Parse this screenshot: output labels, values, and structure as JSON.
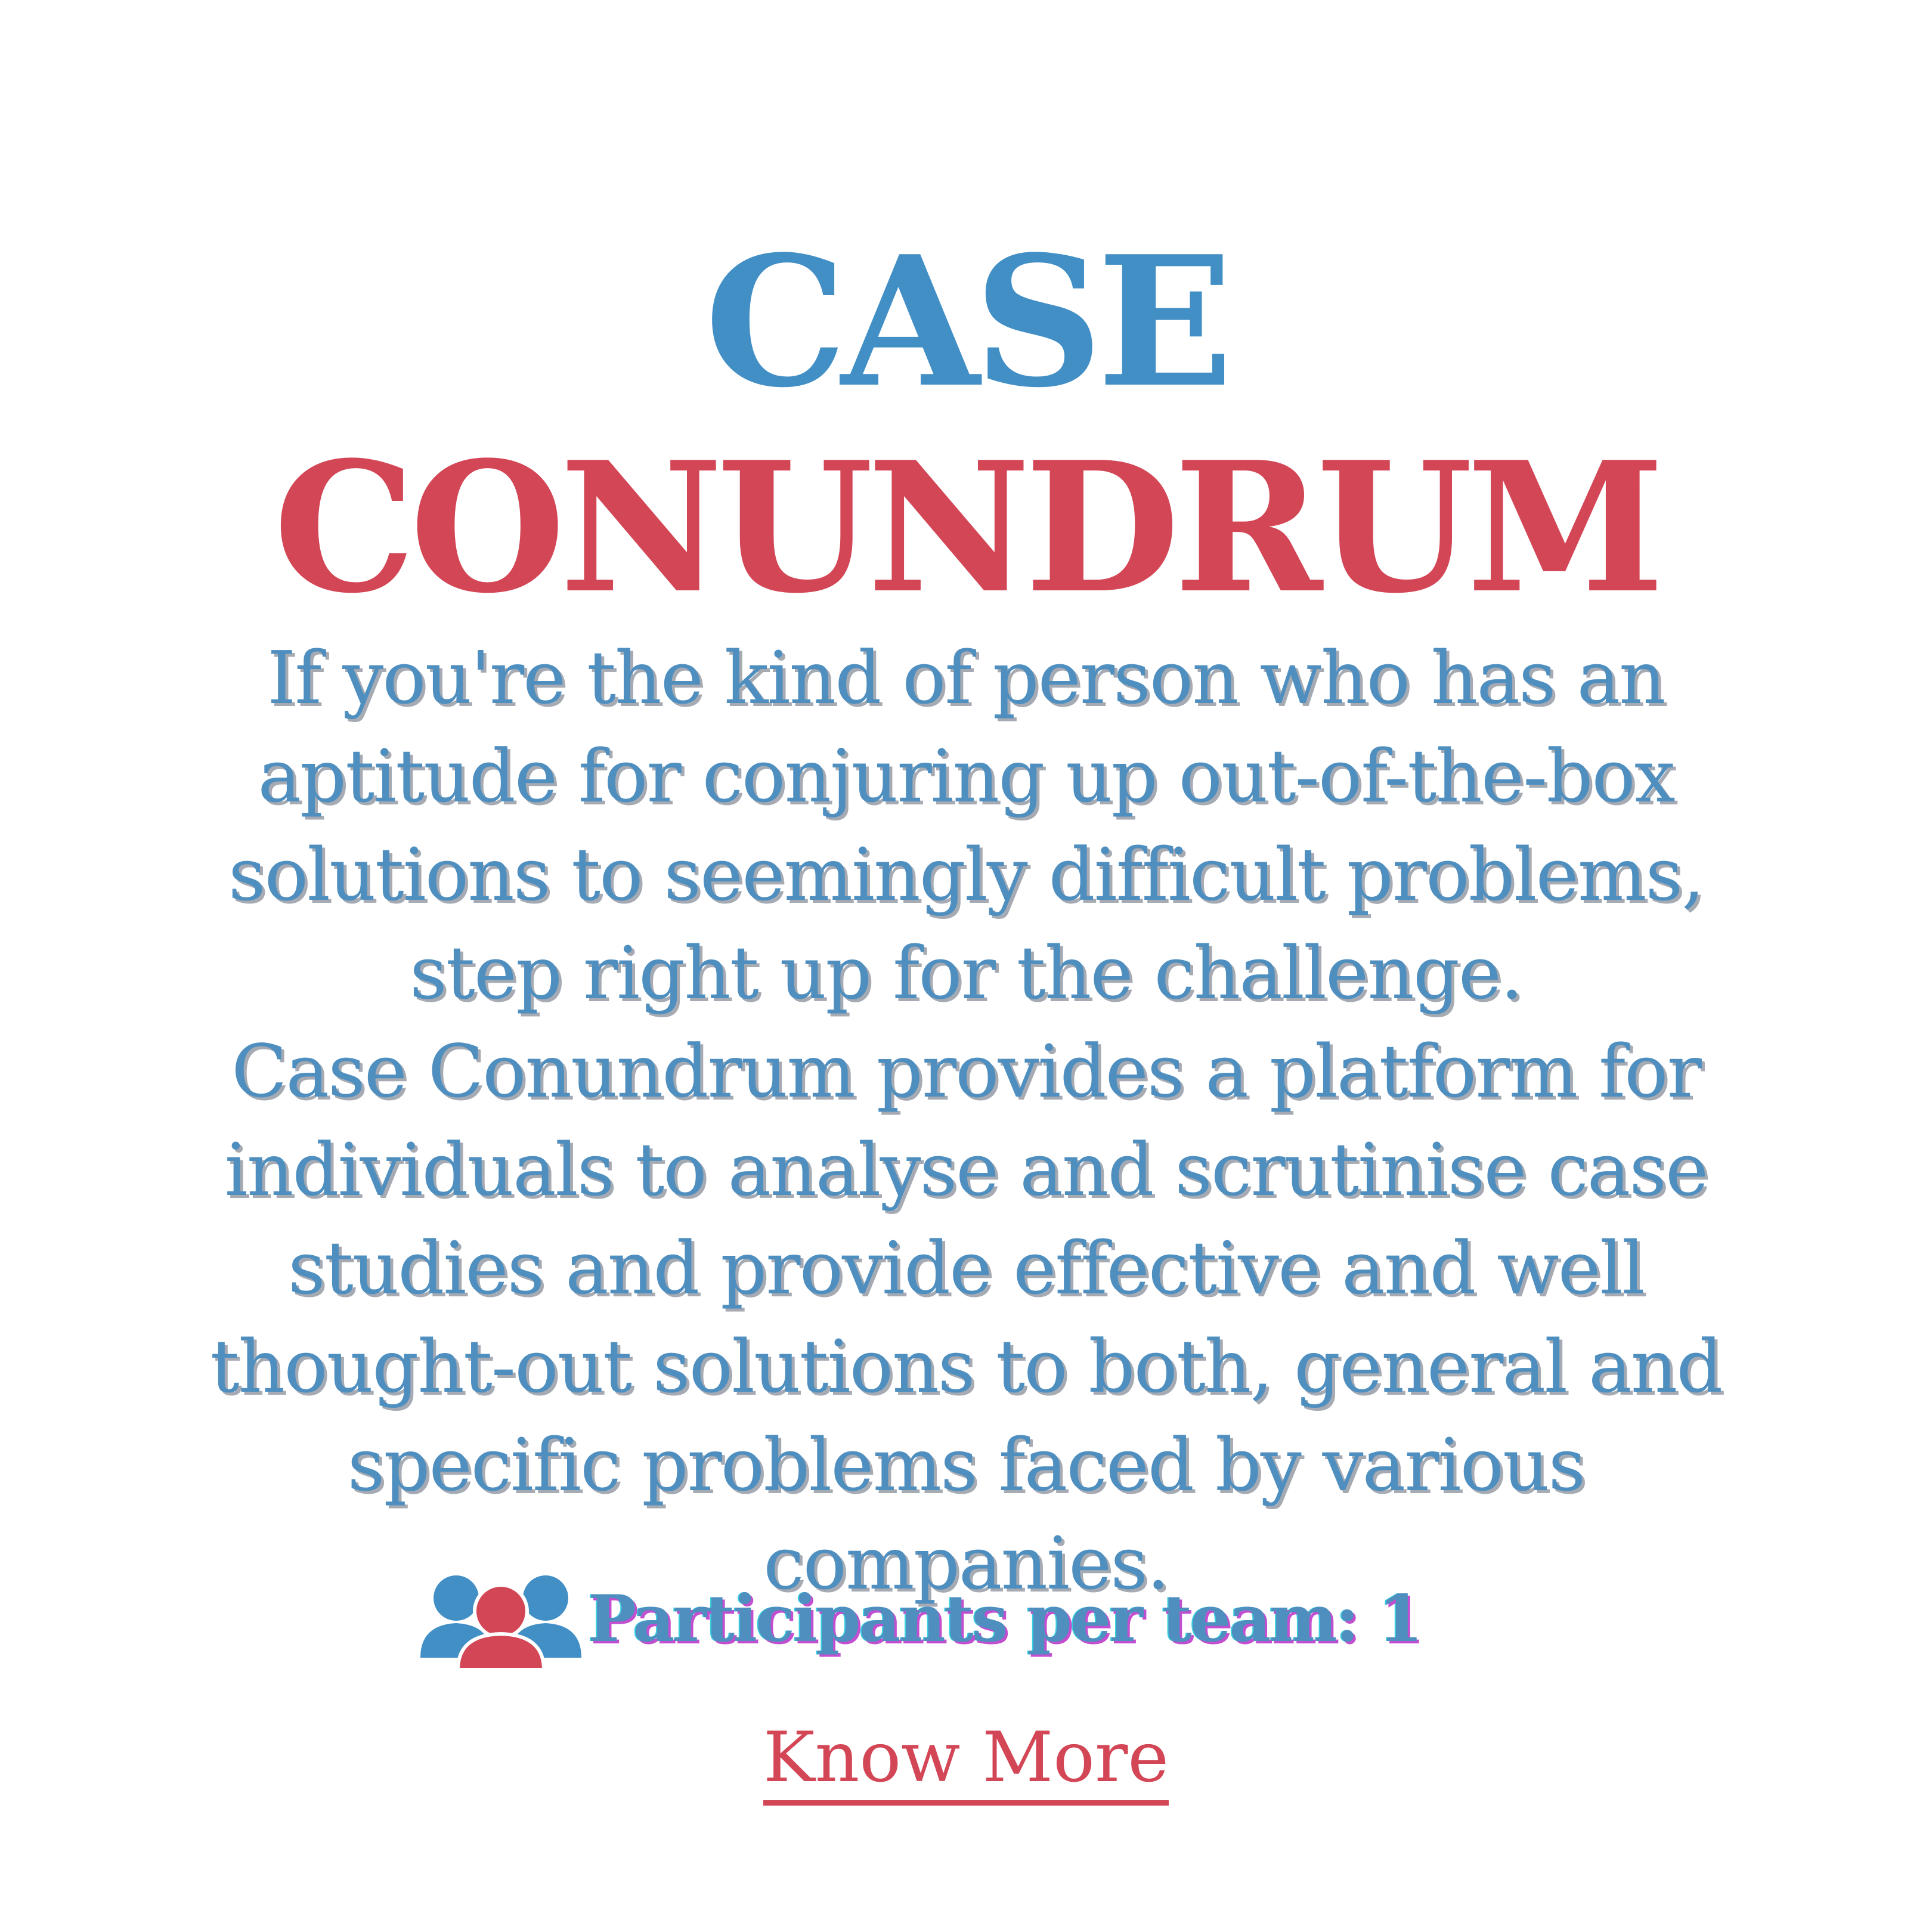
{
  "title": {
    "line1": "CASE",
    "line2": "CONUNDRUM"
  },
  "description": {
    "paragraph1": "If you're the kind of person who has an aptitude for conjuring up out-of-the-box solutions to seemingly difficult problems, step right up for the challenge.",
    "paragraph2": "Case Conundrum provides a platform for individuals to analyse and scrutinise case studies and provide effective and well thought-out solutions to both, general and specific problems faced by various companies."
  },
  "participants": {
    "icon": "group-users-icon",
    "text": "Participants per team: 1"
  },
  "cta": {
    "label": "Know More"
  },
  "colors": {
    "blue": "#428fc6",
    "red": "#d34656",
    "background": "#ffffff"
  }
}
